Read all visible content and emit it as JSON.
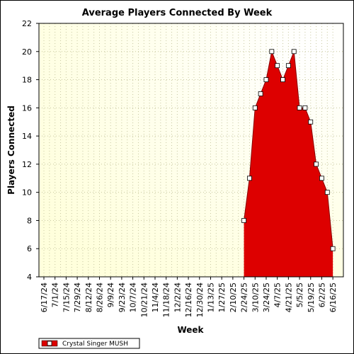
{
  "chart_data": {
    "type": "area",
    "title": "Average Players Connected By Week",
    "xlabel": "Week",
    "ylabel": "Players Connected",
    "ylim": [
      4,
      22
    ],
    "yticks": [
      4,
      6,
      8,
      10,
      12,
      14,
      16,
      18,
      20,
      22
    ],
    "grid": true,
    "legend_position": "bottom-left",
    "x_tick_labels": [
      "6/17/24",
      "7/1/24",
      "7/15/24",
      "7/29/24",
      "8/12/24",
      "8/26/24",
      "9/9/24",
      "9/23/24",
      "10/7/24",
      "10/21/24",
      "11/4/24",
      "11/18/24",
      "12/2/24",
      "12/16/24",
      "12/30/24",
      "1/13/25",
      "1/27/25",
      "2/10/25",
      "2/24/25",
      "3/10/25",
      "3/24/25",
      "4/7/25",
      "4/21/25",
      "5/5/25",
      "5/19/25",
      "6/2/25",
      "6/16/25"
    ],
    "series": [
      {
        "name": "Crystal Singer MUSH",
        "x": [
          "2/24/25",
          "3/3/25",
          "3/10/25",
          "3/17/25",
          "3/24/25",
          "3/31/25",
          "4/7/25",
          "4/14/25",
          "4/21/25",
          "4/28/25",
          "5/5/25",
          "5/12/25",
          "5/19/25",
          "5/26/25",
          "6/2/25",
          "6/9/25",
          "6/16/25"
        ],
        "values": [
          8,
          11,
          16,
          17,
          18,
          20,
          19,
          18,
          19,
          20,
          16,
          16,
          15,
          12,
          11,
          10,
          6
        ]
      }
    ],
    "colors": {
      "fill": "#dd0000",
      "line": "#880000",
      "plot_background": "#ffffe0",
      "grid": "#c8c8a0"
    }
  }
}
